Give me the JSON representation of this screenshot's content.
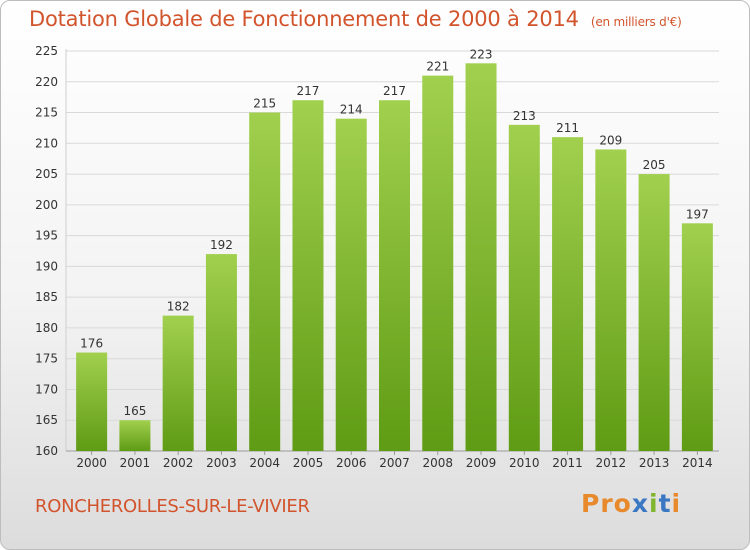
{
  "header": {
    "title": "Dotation Globale de Fonctionnement de 2000 à 2014",
    "unit": "(en milliers d'€)"
  },
  "footer": {
    "commune": "RONCHEROLLES-SUR-LE-VIVIER",
    "logo_letters": [
      "P",
      "r",
      "o",
      "x",
      "i",
      "t",
      "i"
    ],
    "logo_colors": [
      "#e8892b",
      "#e8892b",
      "#e8892b",
      "#3b78c3",
      "#7fb52f",
      "#3b78c3",
      "#e8892b"
    ]
  },
  "chart_data": {
    "type": "bar",
    "title": "Dotation Globale de Fonctionnement de 2000 à 2014",
    "xlabel": "",
    "ylabel": "",
    "categories": [
      "2000",
      "2001",
      "2002",
      "2003",
      "2004",
      "2005",
      "2006",
      "2007",
      "2008",
      "2009",
      "2010",
      "2011",
      "2012",
      "2013",
      "2014"
    ],
    "values": [
      176,
      165,
      182,
      192,
      215,
      217,
      214,
      217,
      221,
      223,
      213,
      211,
      209,
      205,
      197
    ],
    "ylim": [
      160,
      225
    ],
    "yticks": [
      160,
      165,
      170,
      175,
      180,
      185,
      190,
      195,
      200,
      205,
      210,
      215,
      220,
      225
    ],
    "grid": true,
    "colors": {
      "bar_top": "#a1d04e",
      "bar_bottom": "#5f9b14",
      "grid": "#d9d9d9",
      "text": "#333333"
    }
  }
}
